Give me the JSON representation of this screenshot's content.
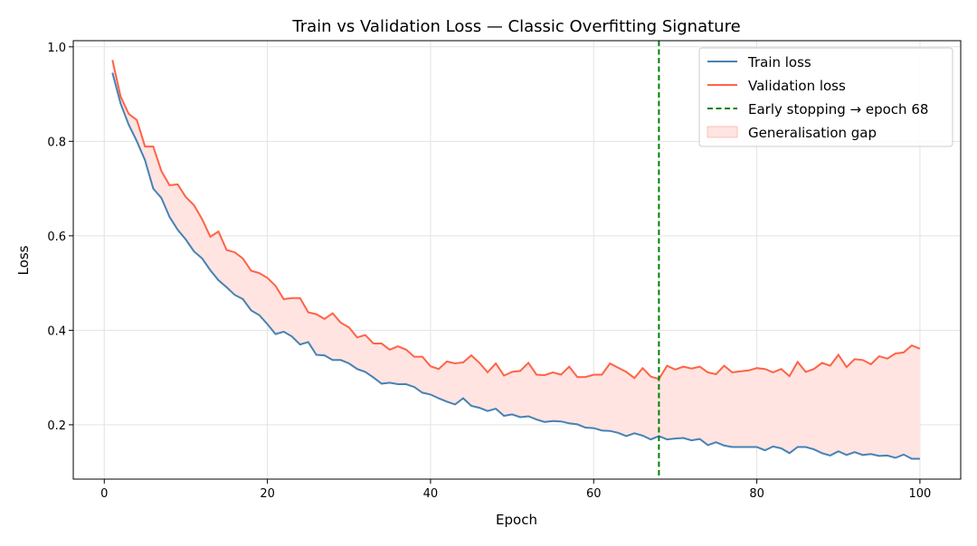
{
  "chart_data": {
    "type": "line",
    "title": "Train vs Validation Loss — Classic Overfitting Signature",
    "xlabel": "Epoch",
    "ylabel": "Loss",
    "xlim": [
      -3.8,
      105
    ],
    "ylim": [
      0.085,
      1.013
    ],
    "xticks": [
      0,
      20,
      40,
      60,
      80,
      100
    ],
    "yticks": [
      0.2,
      0.4,
      0.6,
      0.8,
      1.0
    ],
    "ytick_labels": [
      "0.2",
      "0.4",
      "0.6",
      "0.8",
      "1.0"
    ],
    "grid": true,
    "legend_position": "top-right",
    "x": [
      1,
      2,
      3,
      4,
      5,
      6,
      7,
      8,
      9,
      10,
      11,
      12,
      13,
      14,
      15,
      16,
      17,
      18,
      19,
      20,
      21,
      22,
      23,
      24,
      25,
      26,
      27,
      28,
      29,
      30,
      31,
      32,
      33,
      34,
      35,
      36,
      37,
      38,
      39,
      40,
      41,
      42,
      43,
      44,
      45,
      46,
      47,
      48,
      49,
      50,
      51,
      52,
      53,
      54,
      55,
      56,
      57,
      58,
      59,
      60,
      61,
      62,
      63,
      64,
      65,
      66,
      67,
      68,
      69,
      70,
      71,
      72,
      73,
      74,
      75,
      76,
      77,
      78,
      79,
      80,
      81,
      82,
      83,
      84,
      85,
      86,
      87,
      88,
      89,
      90,
      91,
      92,
      93,
      94,
      95,
      96,
      97,
      98,
      99,
      100
    ],
    "series": [
      {
        "name": "Train loss",
        "color": "#4682b4",
        "values": [
          0.945,
          0.88,
          0.835,
          0.8,
          0.76,
          0.7,
          0.68,
          0.64,
          0.613,
          0.592,
          0.567,
          0.552,
          0.527,
          0.506,
          0.491,
          0.475,
          0.466,
          0.442,
          0.432,
          0.413,
          0.392,
          0.397,
          0.387,
          0.37,
          0.375,
          0.348,
          0.347,
          0.337,
          0.337,
          0.33,
          0.318,
          0.312,
          0.3,
          0.287,
          0.289,
          0.286,
          0.286,
          0.28,
          0.268,
          0.264,
          0.256,
          0.249,
          0.243,
          0.256,
          0.24,
          0.236,
          0.229,
          0.234,
          0.219,
          0.222,
          0.216,
          0.218,
          0.211,
          0.206,
          0.208,
          0.207,
          0.203,
          0.201,
          0.194,
          0.193,
          0.188,
          0.187,
          0.183,
          0.176,
          0.182,
          0.177,
          0.169,
          0.176,
          0.169,
          0.171,
          0.172,
          0.167,
          0.17,
          0.157,
          0.163,
          0.156,
          0.153,
          0.153,
          0.153,
          0.153,
          0.146,
          0.154,
          0.15,
          0.14,
          0.153,
          0.153,
          0.148,
          0.14,
          0.135,
          0.144,
          0.136,
          0.142,
          0.136,
          0.138,
          0.134,
          0.135,
          0.13,
          0.137,
          0.128,
          0.128
        ]
      },
      {
        "name": "Validation loss",
        "color": "#ff6347",
        "values": [
          0.972,
          0.895,
          0.858,
          0.845,
          0.789,
          0.789,
          0.737,
          0.707,
          0.709,
          0.682,
          0.665,
          0.635,
          0.598,
          0.609,
          0.57,
          0.565,
          0.552,
          0.526,
          0.521,
          0.511,
          0.494,
          0.466,
          0.468,
          0.468,
          0.438,
          0.434,
          0.424,
          0.436,
          0.416,
          0.406,
          0.385,
          0.39,
          0.372,
          0.372,
          0.359,
          0.366,
          0.359,
          0.344,
          0.344,
          0.324,
          0.318,
          0.334,
          0.33,
          0.332,
          0.347,
          0.331,
          0.311,
          0.33,
          0.304,
          0.312,
          0.314,
          0.331,
          0.306,
          0.305,
          0.311,
          0.306,
          0.323,
          0.301,
          0.301,
          0.306,
          0.306,
          0.33,
          0.321,
          0.312,
          0.299,
          0.32,
          0.302,
          0.297,
          0.325,
          0.317,
          0.323,
          0.319,
          0.323,
          0.311,
          0.307,
          0.325,
          0.311,
          0.313,
          0.315,
          0.32,
          0.318,
          0.311,
          0.318,
          0.303,
          0.333,
          0.312,
          0.318,
          0.331,
          0.325,
          0.348,
          0.322,
          0.339,
          0.337,
          0.328,
          0.345,
          0.34,
          0.351,
          0.353,
          0.368,
          0.361
        ]
      }
    ],
    "early_stopping": {
      "epoch": 68,
      "color": "#008000"
    },
    "gap_fill_color": "#ffe4e1",
    "legend": [
      "Train loss",
      "Validation loss",
      "Early stopping → epoch 68",
      "Generalisation gap"
    ]
  }
}
